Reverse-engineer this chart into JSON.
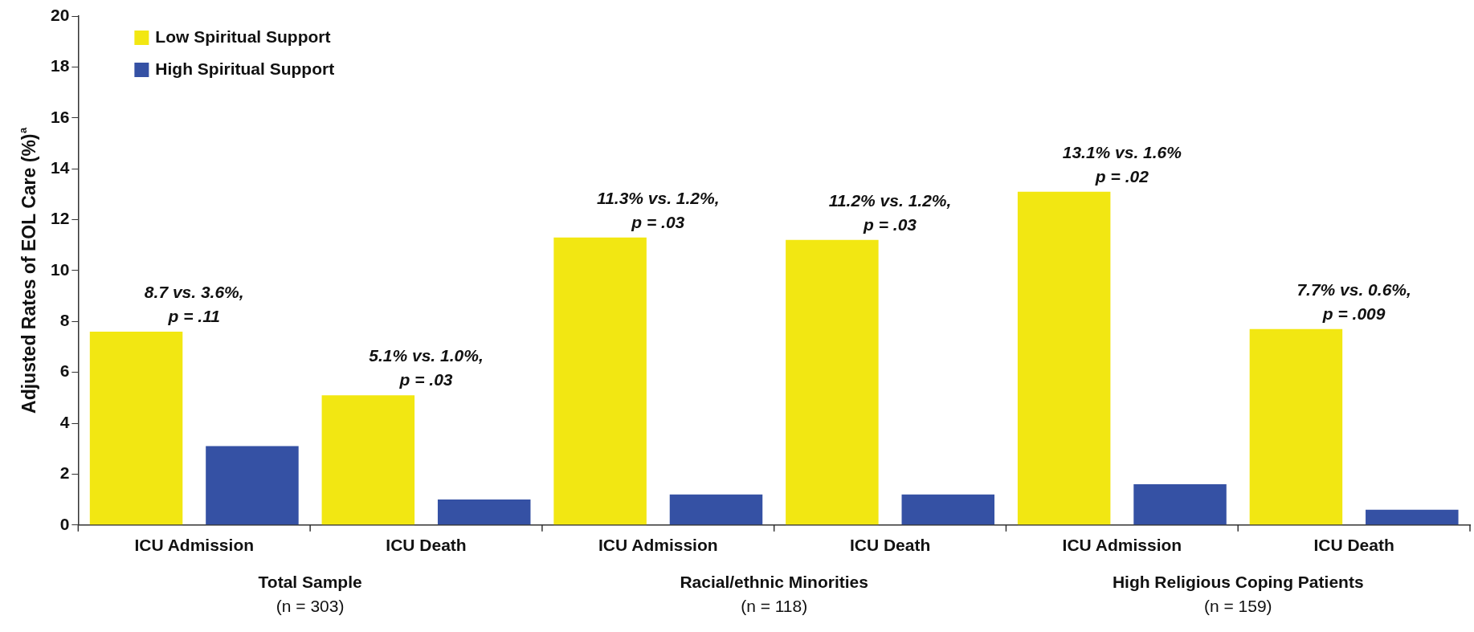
{
  "chart_data": {
    "type": "bar",
    "ylabel": "Adjusted Rates of EOL Care (%)$^{a}$",
    "categories": [
      "ICU Admission",
      "ICU Death",
      "ICU Admission",
      "ICU Death",
      "ICU Admission",
      "ICU Death"
    ],
    "series": [
      {
        "name": "Low Spiritual Support",
        "color": "#f2e712",
        "values": [
          7.6,
          5.1,
          11.3,
          11.2,
          13.1,
          7.7
        ]
      },
      {
        "name": "High Spiritual Support",
        "color": "#3551a4",
        "values": [
          3.1,
          1.0,
          1.2,
          1.2,
          1.6,
          0.6
        ]
      }
    ],
    "ylim": [
      0,
      20
    ],
    "yticks": [
      0,
      2,
      4,
      6,
      8,
      10,
      12,
      14,
      16,
      18,
      20
    ],
    "grid": false,
    "legend": "top left",
    "annotations": [
      "8.7 vs. 3.6%,\np = .11",
      "5.1% vs. 1.0%,\np = .03",
      "11.3% vs. 1.2%,\np = .03",
      "11.2% vs. 1.2%,\np = .03",
      "13.1% vs. 1.6%\np = .02",
      "7.7% vs. 0.6%,\np = .009",
      "Total Sample\n(n = 303)",
      "Racial/ethnic Minorities\n(n = 118)",
      "High Religious Coping Patients\n(n = 159)"
    ]
  }
}
